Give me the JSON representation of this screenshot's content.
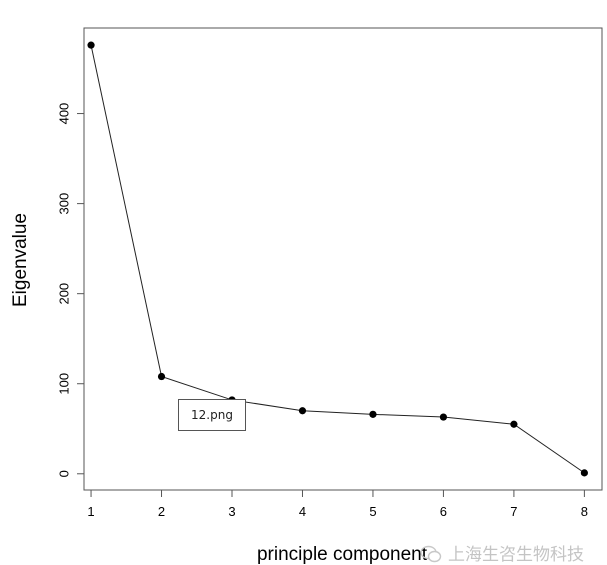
{
  "chart_data": {
    "type": "line",
    "title": "",
    "xlabel": "principle component",
    "ylabel": "Eigenvalue",
    "x": [
      1,
      2,
      3,
      4,
      5,
      6,
      7,
      8
    ],
    "x_ticks": [
      "1",
      "2",
      "3",
      "4",
      "5",
      "6",
      "7",
      "8"
    ],
    "y_ticks": [
      "0",
      "100",
      "200",
      "300",
      "400"
    ],
    "xlim": [
      0.9,
      8.25
    ],
    "ylim": [
      -18,
      495
    ],
    "series": [
      {
        "values": [
          476,
          108,
          82,
          70,
          66,
          63,
          55,
          1
        ],
        "marker": "filled-circle",
        "color": "#000000"
      }
    ],
    "grid": false
  },
  "tooltip": {
    "text": "12.png"
  },
  "watermark": {
    "text": "上海生咨生物科技",
    "icon": "wechat-icon"
  }
}
